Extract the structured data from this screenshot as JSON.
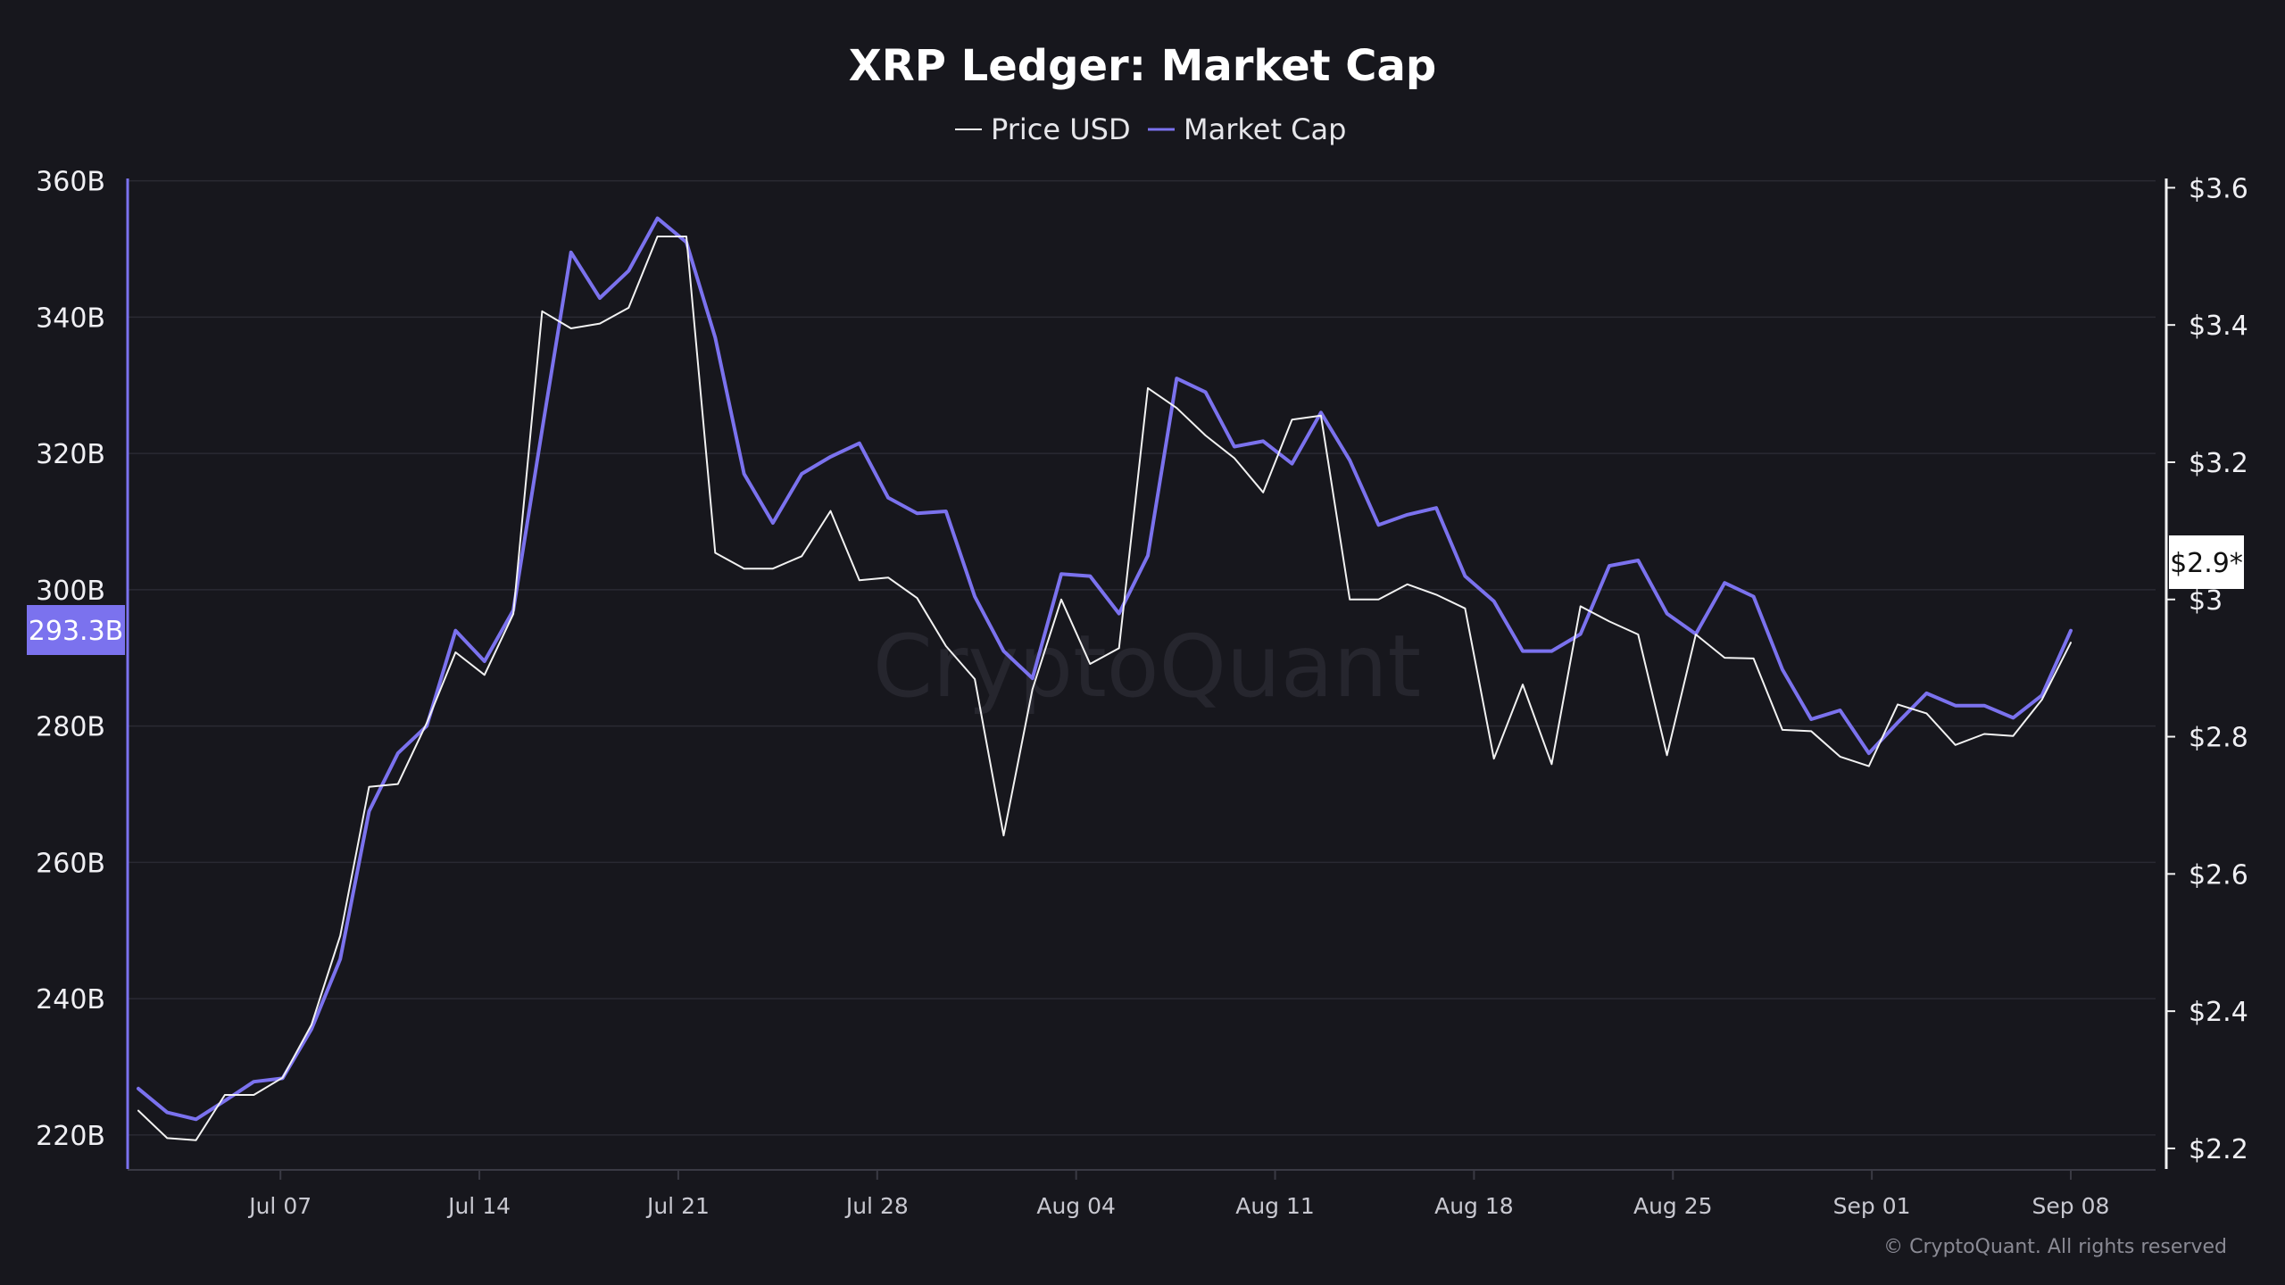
{
  "header": {
    "title": "XRP Ledger: Market Cap"
  },
  "legend": {
    "price_label": "Price USD",
    "marketcap_label": "Market Cap"
  },
  "colors": {
    "background": "#17171d",
    "price": "#f2f2f2",
    "marketcap": "#7b72ee",
    "grid": "#2a2a33"
  },
  "badges": {
    "left_value": "293.3B",
    "right_value": "$2.9*"
  },
  "watermark": "CryptoQuant",
  "copyright": "© CryptoQuant. All rights reserved",
  "chart_data": {
    "type": "line",
    "title": "XRP Ledger: Market Cap",
    "x_start": "2025-07-02",
    "x_end": "2025-09-08",
    "x_tick_labels": [
      "Jul 07",
      "Jul 14",
      "Jul 21",
      "Jul 28",
      "Aug 04",
      "Aug 11",
      "Aug 18",
      "Aug 25",
      "Sep 01",
      "Sep 08"
    ],
    "y_left": {
      "ylim": [
        215,
        361
      ],
      "ticks": [
        220,
        240,
        260,
        280,
        300,
        320,
        340,
        360
      ],
      "tick_labels": [
        "220B",
        "240B",
        "260B",
        "280B",
        "300B",
        "320B",
        "340B",
        "360B"
      ]
    },
    "y_right": {
      "ylim": [
        2.17,
        3.62
      ],
      "ticks": [
        2.2,
        2.4,
        2.6,
        2.8,
        3.0,
        3.2,
        3.4,
        3.6
      ],
      "tick_labels": [
        "$2.2",
        "$2.4",
        "$2.6",
        "$2.8",
        "$3",
        "$3.2",
        "$3.4",
        "$3.6"
      ]
    },
    "grid": true,
    "legend_position": "top-center",
    "series": [
      {
        "name": "Market Cap",
        "axis": "left",
        "values": [
          226.8,
          223.3,
          222.3,
          225.0,
          227.8,
          228.3,
          235.5,
          245.8,
          267.5,
          276.0,
          280.0,
          294.0,
          289.5,
          297.0,
          323.5,
          349.5,
          342.8,
          346.8,
          354.5,
          351.0,
          337.0,
          317.0,
          309.8,
          317.0,
          319.5,
          321.5,
          313.5,
          311.2,
          311.5,
          299.0,
          291.0,
          287.0,
          302.3,
          302.0,
          296.5,
          305.0,
          331.0,
          329.0,
          321.0,
          321.8,
          318.5,
          326.0,
          319.0,
          309.5,
          311.0,
          312.0,
          302.0,
          298.3,
          291.0,
          291.0,
          293.5,
          303.5,
          304.3,
          296.5,
          293.5,
          301.0,
          299.0,
          288.3,
          281.0,
          282.3,
          276.0,
          280.5,
          284.8,
          283.0,
          283.0,
          281.2,
          284.5,
          294.0
        ]
      },
      {
        "name": "Price USD",
        "axis": "right",
        "values": [
          2.255,
          2.215,
          2.212,
          2.278,
          2.278,
          2.303,
          2.38,
          2.51,
          2.727,
          2.731,
          2.82,
          2.923,
          2.89,
          2.979,
          3.42,
          3.395,
          3.402,
          3.425,
          3.529,
          3.529,
          3.068,
          3.045,
          3.045,
          3.063,
          3.129,
          3.028,
          3.032,
          3.002,
          2.932,
          2.884,
          2.656,
          2.869,
          3.0,
          2.906,
          2.929,
          3.308,
          3.279,
          3.239,
          3.206,
          3.156,
          3.262,
          3.268,
          3.0,
          3.0,
          3.022,
          3.007,
          2.987,
          2.768,
          2.876,
          2.76,
          2.99,
          2.968,
          2.949,
          2.773,
          2.949,
          2.915,
          2.914,
          2.81,
          2.808,
          2.771,
          2.757,
          2.847,
          2.834,
          2.788,
          2.804,
          2.801,
          2.854,
          2.937
        ]
      }
    ]
  }
}
